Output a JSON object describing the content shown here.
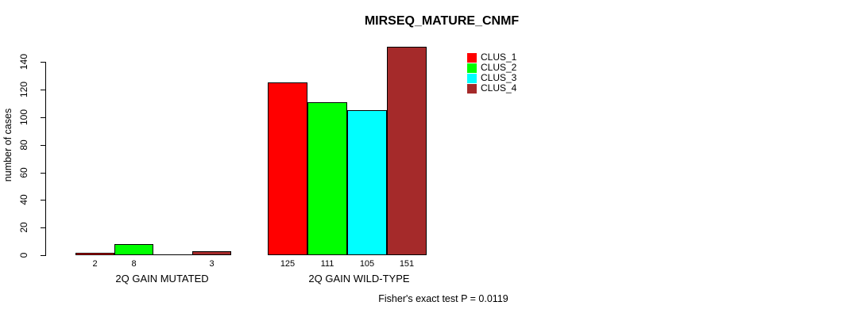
{
  "title": "MIRSEQ_MATURE_CNMF",
  "ylabel": "number of cases",
  "footer": "Fisher's exact test P = 0.0119",
  "legend": {
    "items": [
      {
        "label": "CLUS_1",
        "color": "#FF0000"
      },
      {
        "label": "CLUS_2",
        "color": "#00FF00"
      },
      {
        "label": "CLUS_3",
        "color": "#00FFFF"
      },
      {
        "label": "CLUS_4",
        "color": "#A52A2A"
      }
    ]
  },
  "chart_data": {
    "type": "bar",
    "title": "MIRSEQ_MATURE_CNMF",
    "ylabel": "number of cases",
    "xlabel": "",
    "categories": [
      "2Q GAIN MUTATED",
      "2Q GAIN WILD-TYPE"
    ],
    "series": [
      {
        "name": "CLUS_1",
        "color": "#FF0000",
        "values": [
          2,
          125
        ]
      },
      {
        "name": "CLUS_2",
        "color": "#00FF00",
        "values": [
          8,
          111
        ]
      },
      {
        "name": "CLUS_3",
        "color": "#00FFFF",
        "values": [
          0,
          105
        ]
      },
      {
        "name": "CLUS_4",
        "color": "#A52A2A",
        "values": [
          3,
          151
        ]
      }
    ],
    "bar_labels": [
      [
        "2",
        "8",
        "",
        "3"
      ],
      [
        "125",
        "111",
        "105",
        "151"
      ]
    ],
    "yticks": [
      0,
      20,
      40,
      60,
      80,
      100,
      120,
      140
    ],
    "ylim": [
      0,
      151
    ],
    "grid": false,
    "legend_position": "inside-top-center",
    "annotation": "Fisher's exact test P = 0.0119"
  }
}
